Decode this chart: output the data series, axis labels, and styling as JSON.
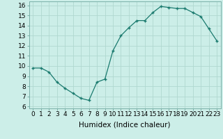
{
  "x": [
    0,
    1,
    2,
    3,
    4,
    5,
    6,
    7,
    8,
    9,
    10,
    11,
    12,
    13,
    14,
    15,
    16,
    17,
    18,
    19,
    20,
    21,
    22,
    23
  ],
  "y": [
    9.8,
    9.8,
    9.4,
    8.4,
    7.8,
    7.3,
    6.8,
    6.6,
    8.4,
    8.7,
    11.5,
    13.0,
    13.8,
    14.5,
    14.5,
    15.3,
    15.9,
    15.8,
    15.7,
    15.7,
    15.3,
    14.9,
    13.7,
    12.5
  ],
  "line_color": "#1a7a6e",
  "marker": "+",
  "marker_size": 3.5,
  "marker_lw": 1.0,
  "bg_color": "#cceee8",
  "grid_color": "#b0d8d0",
  "xlabel": "Humidex (Indice chaleur)",
  "ylabel_ticks": [
    6,
    7,
    8,
    9,
    10,
    11,
    12,
    13,
    14,
    15,
    16
  ],
  "xlim": [
    -0.5,
    23.5
  ],
  "ylim": [
    5.8,
    16.4
  ],
  "xlabel_fontsize": 7.5,
  "tick_fontsize": 6.5,
  "linewidth": 0.9
}
